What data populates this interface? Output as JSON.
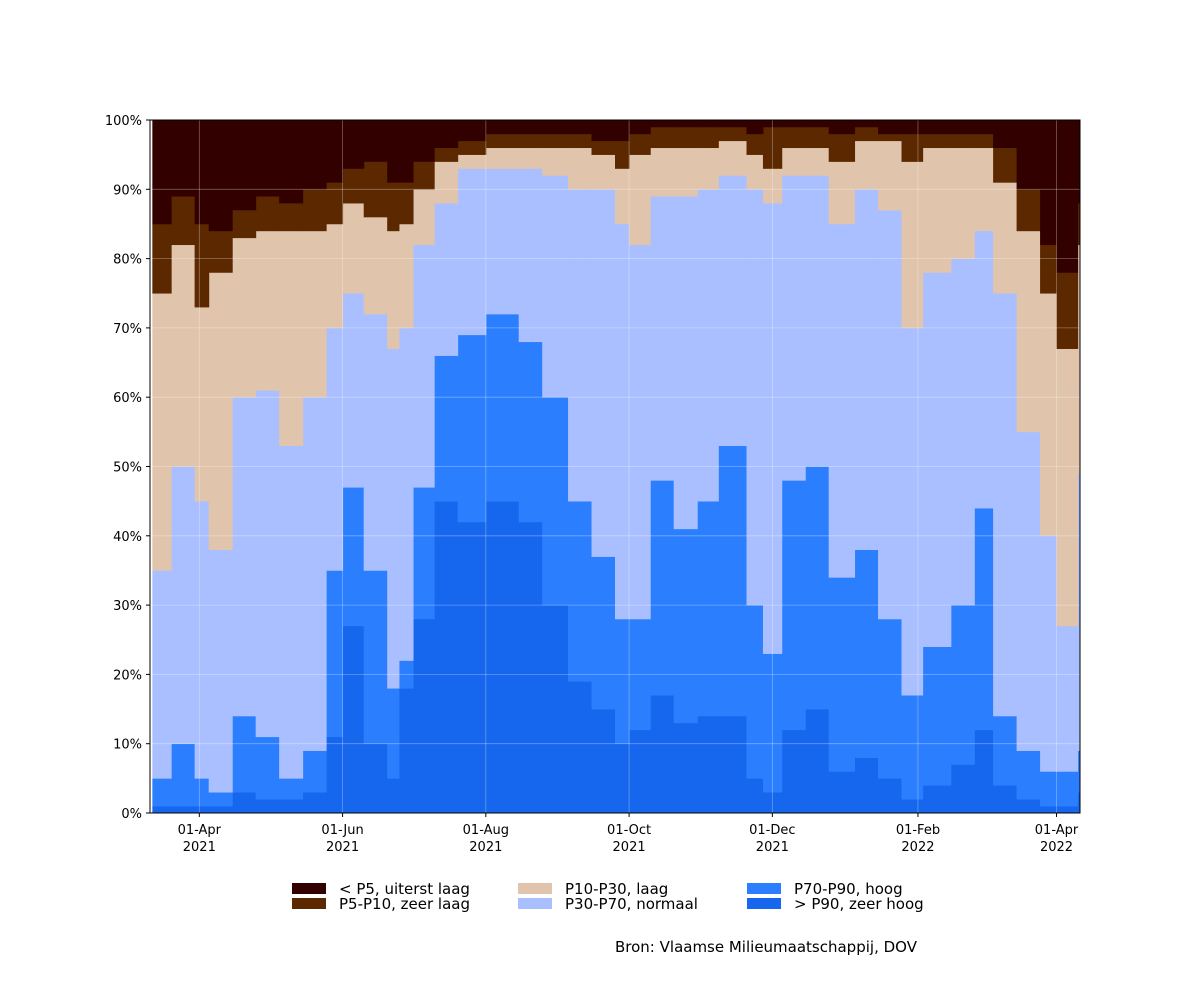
{
  "chart_data": {
    "type": "stacked_step_area",
    "source": "Bron: Vlaamse Milieumaatschappij, DOV",
    "x": [
      "2021-03-12",
      "2021-03-20",
      "2021-03-30",
      "2021-04-05",
      "2021-04-15",
      "2021-04-25",
      "2021-05-05",
      "2021-05-15",
      "2021-05-25",
      "2021-06-01",
      "2021-06-10",
      "2021-06-20",
      "2021-06-25",
      "2021-07-01",
      "2021-07-10",
      "2021-07-20",
      "2021-08-01",
      "2021-08-15",
      "2021-08-25",
      "2021-09-05",
      "2021-09-15",
      "2021-09-25",
      "2021-10-01",
      "2021-10-10",
      "2021-10-20",
      "2021-10-30",
      "2021-11-08",
      "2021-11-20",
      "2021-11-27",
      "2021-12-05",
      "2021-12-15",
      "2021-12-25",
      "2022-01-05",
      "2022-01-15",
      "2022-01-25",
      "2022-02-03",
      "2022-02-15",
      "2022-02-25",
      "2022-03-05",
      "2022-03-15",
      "2022-03-25",
      "2022-04-01",
      "2022-04-10"
    ],
    "xlim": [
      "2021-03-11",
      "2022-04-11"
    ],
    "xticks": [
      {
        "value": "2021-04-01",
        "label": [
          "01-Apr",
          "2021"
        ]
      },
      {
        "value": "2021-06-01",
        "label": [
          "01-Jun",
          "2021"
        ]
      },
      {
        "value": "2021-08-01",
        "label": [
          "01-Aug",
          "2021"
        ]
      },
      {
        "value": "2021-10-01",
        "label": [
          "01-Oct",
          "2021"
        ]
      },
      {
        "value": "2021-12-01",
        "label": [
          "01-Dec",
          "2021"
        ]
      },
      {
        "value": "2022-02-01",
        "label": [
          "01-Feb",
          "2022"
        ]
      },
      {
        "value": "2022-04-01",
        "label": [
          "01-Apr",
          "2022"
        ]
      }
    ],
    "ylim": [
      0,
      100
    ],
    "yticks": [
      {
        "value": 0,
        "label": "0%"
      },
      {
        "value": 10,
        "label": "10%"
      },
      {
        "value": 20,
        "label": "20%"
      },
      {
        "value": 30,
        "label": "30%"
      },
      {
        "value": 40,
        "label": "40%"
      },
      {
        "value": 50,
        "label": "50%"
      },
      {
        "value": 60,
        "label": "60%"
      },
      {
        "value": 70,
        "label": "70%"
      },
      {
        "value": 80,
        "label": "80%"
      },
      {
        "value": 90,
        "label": "90%"
      },
      {
        "value": 100,
        "label": "100%"
      }
    ],
    "grid": true,
    "legend": "lower center",
    "series": [
      {
        "name": "> P90, zeer hoog",
        "color": "#1666ee",
        "values": [
          1,
          1,
          1,
          1,
          3,
          2,
          2,
          3,
          11,
          27,
          10,
          5,
          18,
          28,
          45,
          42,
          45,
          42,
          30,
          19,
          15,
          10,
          12,
          17,
          13,
          14,
          14,
          5,
          3,
          12,
          15,
          6,
          8,
          5,
          2,
          4,
          7,
          12,
          4,
          2,
          1,
          1,
          3
        ]
      },
      {
        "name": "P70-P90, hoog",
        "color": "#2b7fff",
        "values": [
          4,
          9,
          4,
          2,
          11,
          9,
          3,
          6,
          24,
          20,
          25,
          13,
          4,
          19,
          21,
          27,
          27,
          26,
          30,
          26,
          22,
          18,
          16,
          31,
          28,
          31,
          39,
          25,
          20,
          36,
          35,
          28,
          30,
          23,
          15,
          20,
          23,
          32,
          10,
          7,
          5,
          5,
          6
        ]
      },
      {
        "name": "P30-P70, normaal",
        "color": "#aabfff",
        "values": [
          30,
          40,
          40,
          35,
          46,
          50,
          48,
          51,
          35,
          28,
          37,
          49,
          48,
          35,
          22,
          24,
          21,
          25,
          32,
          45,
          53,
          57,
          54,
          41,
          48,
          45,
          39,
          60,
          65,
          44,
          42,
          51,
          52,
          59,
          53,
          54,
          50,
          40,
          61,
          46,
          34,
          21,
          40
        ]
      },
      {
        "name": "P10-P30, laag",
        "color": "#e0c4ac",
        "values": [
          40,
          32,
          28,
          40,
          23,
          23,
          31,
          24,
          15,
          13,
          14,
          17,
          15,
          8,
          6,
          2,
          3,
          3,
          4,
          6,
          5,
          8,
          13,
          7,
          7,
          6,
          5,
          5,
          5,
          4,
          4,
          9,
          7,
          10,
          24,
          18,
          16,
          12,
          16,
          29,
          35,
          40,
          33
        ]
      },
      {
        "name": "P5-P10, zeer laag",
        "color": "#5c2800",
        "values": [
          10,
          7,
          12,
          6,
          4,
          5,
          4,
          6,
          6,
          5,
          8,
          7,
          6,
          4,
          2,
          2,
          2,
          2,
          2,
          2,
          2,
          4,
          3,
          3,
          3,
          3,
          2,
          3,
          6,
          3,
          3,
          4,
          2,
          1,
          4,
          2,
          2,
          2,
          5,
          6,
          7,
          11,
          6
        ]
      },
      {
        "name": "< P5, uiterst laag",
        "color": "#330000",
        "values": [
          15,
          11,
          15,
          16,
          13,
          11,
          12,
          10,
          9,
          7,
          6,
          9,
          9,
          6,
          4,
          3,
          2,
          2,
          2,
          2,
          3,
          3,
          2,
          1,
          1,
          1,
          1,
          2,
          1,
          1,
          1,
          2,
          1,
          2,
          2,
          2,
          2,
          2,
          4,
          10,
          18,
          22,
          12
        ]
      }
    ]
  }
}
